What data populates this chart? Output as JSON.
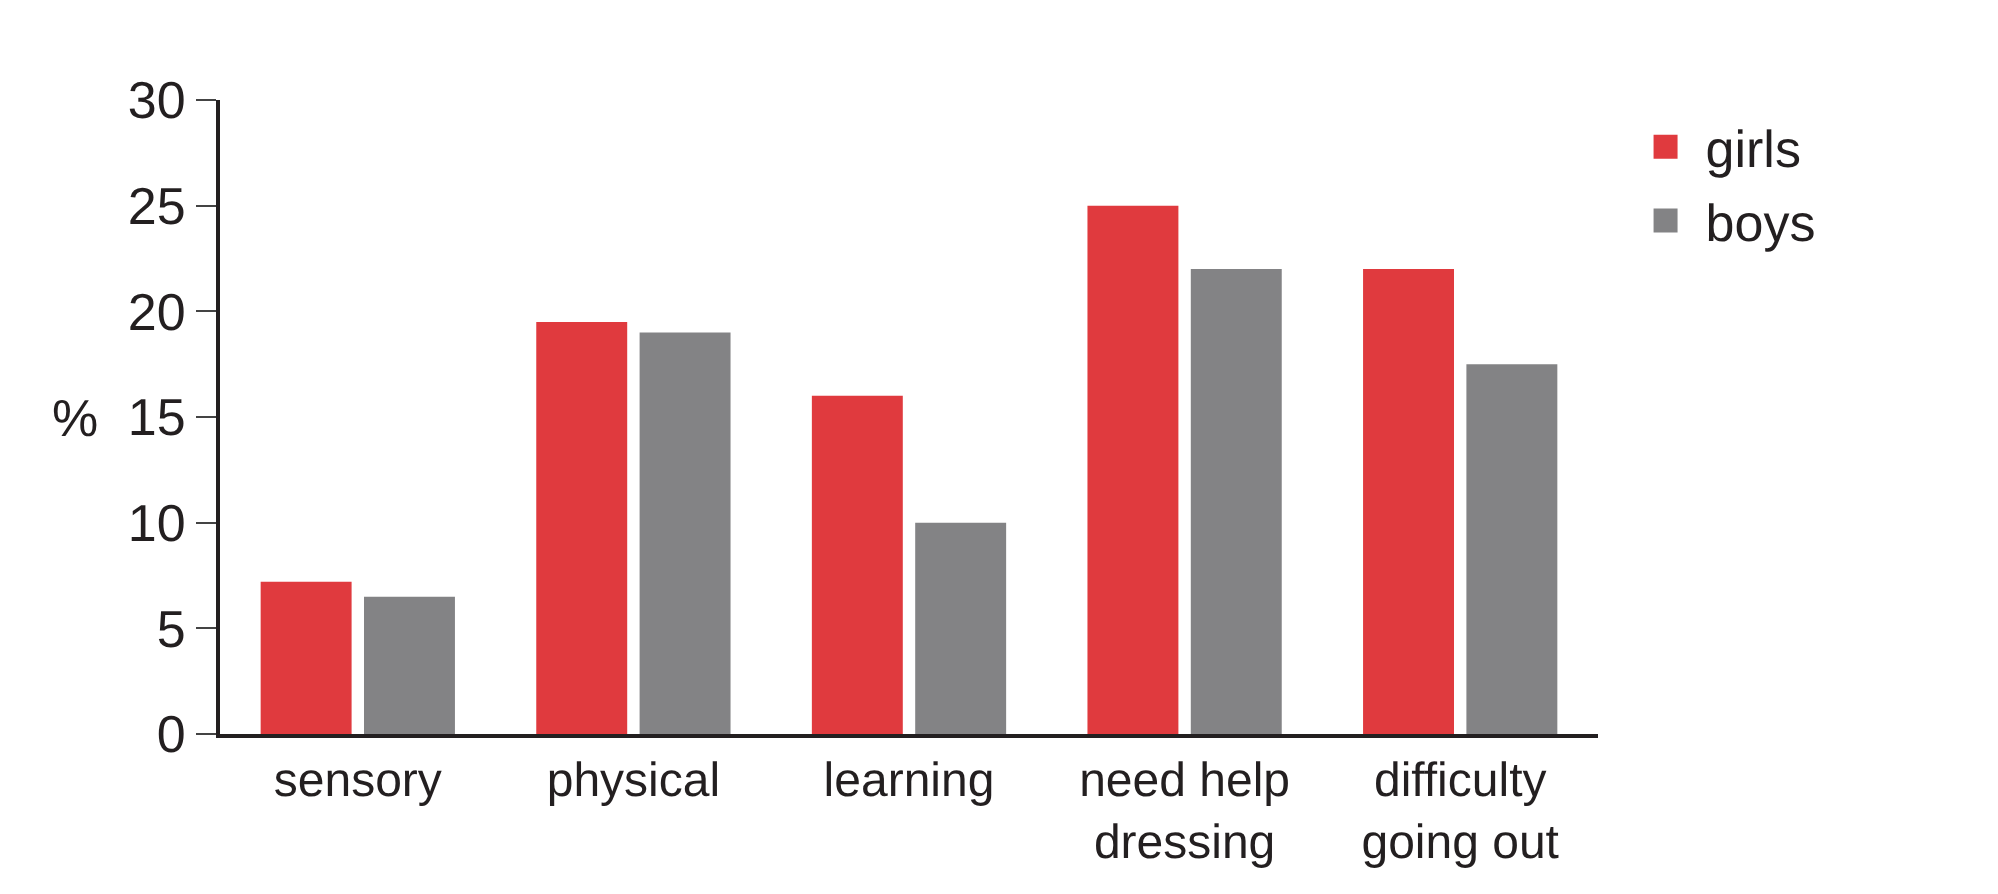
{
  "chart_data": {
    "type": "bar",
    "ylabel": "%",
    "categories": [
      "sensory",
      "physical",
      "learning",
      "need help dressing",
      "difficulty going out"
    ],
    "series": [
      {
        "name": "girls",
        "color": "#e03a3e",
        "values": [
          7.2,
          19.5,
          16.0,
          25.0,
          22.0
        ]
      },
      {
        "name": "boys",
        "color": "#838385",
        "values": [
          6.5,
          19.0,
          10.0,
          22.0,
          17.5
        ]
      }
    ],
    "ylim": [
      0,
      30
    ],
    "yticks": [
      0,
      5,
      10,
      15,
      20,
      25,
      30
    ],
    "legend": "top right"
  }
}
